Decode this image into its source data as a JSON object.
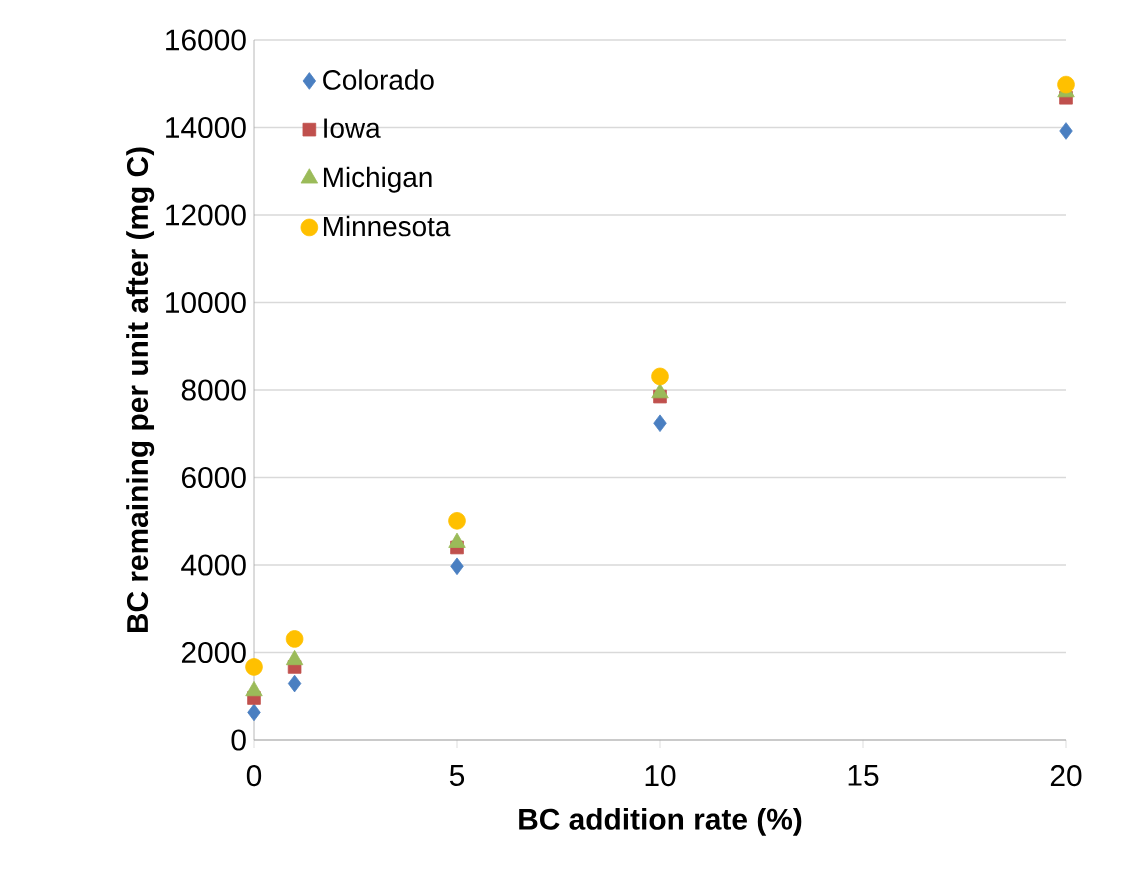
{
  "chart_data": {
    "type": "scatter",
    "xlabel": "BC addition rate (%)",
    "ylabel": "BC remaining per unit after  (mg C)",
    "xlim": [
      0,
      20
    ],
    "xticks": [
      0,
      5,
      10,
      15,
      20
    ],
    "ylim": [
      0,
      16000
    ],
    "yticks": [
      0,
      2000,
      4000,
      6000,
      8000,
      10000,
      12000,
      14000,
      16000
    ],
    "grid": "y",
    "legend": "top left",
    "x": [
      0,
      1,
      5,
      10,
      20
    ],
    "series": [
      {
        "name": "Colorado",
        "color": "#4a7fc1",
        "marker": "diamond",
        "values": [
          630,
          1290,
          3970,
          7240,
          13920
        ]
      },
      {
        "name": "Iowa",
        "color": "#c0504d",
        "marker": "square",
        "values": [
          960,
          1670,
          4400,
          7850,
          14680
        ]
      },
      {
        "name": "Michigan",
        "color": "#9bbb59",
        "marker": "triangle",
        "values": [
          1120,
          1830,
          4510,
          7930,
          14810
        ]
      },
      {
        "name": "Minnesota",
        "color": "#ffc000",
        "marker": "circle",
        "values": [
          1670,
          2310,
          5010,
          8310,
          14980
        ]
      }
    ]
  }
}
